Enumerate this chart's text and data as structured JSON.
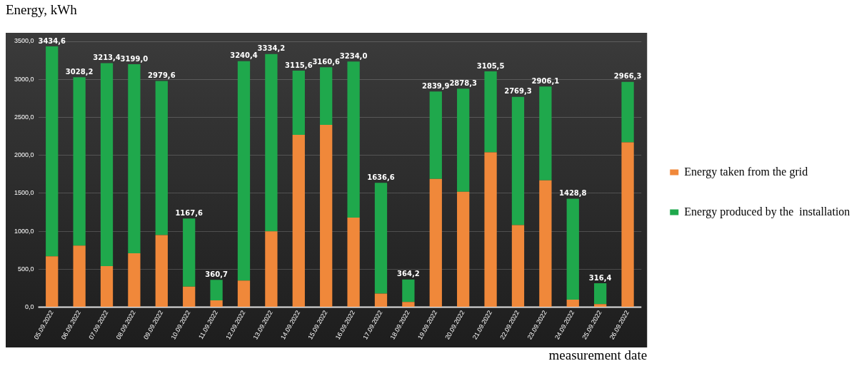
{
  "chart_data": {
    "type": "bar",
    "stacked": true,
    "ylabel": "Energy, kWh",
    "xlabel": "measurement date",
    "categories": [
      "05.09.2022",
      "06.09.2022",
      "07.09.2022",
      "08.09.2022",
      "09.09.2022",
      "10.09.2022",
      "11.09.2022",
      "12.09.2022",
      "13.09.2022",
      "14.09.2022",
      "15.09.2022",
      "16.09.2022",
      "17.09.2022",
      "18.09.2022",
      "19.09.2022",
      "20.09.2022",
      "21.09.2022",
      "22.09.2022",
      "23.09.2022",
      "24.09.2022",
      "25.09.2022",
      "26.09.2022"
    ],
    "series": [
      {
        "name": "Energy taken from the grid",
        "color": "#f0883a",
        "values": [
          670,
          810,
          540,
          710,
          950,
          270,
          90,
          350,
          1000,
          2270,
          2400,
          1180,
          180,
          70,
          1690,
          1520,
          2040,
          1080,
          1670,
          100,
          40,
          2170
        ]
      },
      {
        "name": "Energy produced by the  installation",
        "color": "#1fa84c",
        "values": [
          2764.6,
          2218.2,
          2673.4,
          2489,
          2029.6,
          897.6,
          270.7,
          2890.4,
          2334.2,
          845.6,
          760.6,
          2054,
          1456.6,
          294.2,
          1149.9,
          1358.3,
          1065.5,
          1689.3,
          1236.1,
          1328.8,
          276.4,
          796.3
        ]
      }
    ],
    "totals": [
      "3434,6",
      "3028,2",
      "3213,4",
      "3199,0",
      "2979,6",
      "1167,6",
      "360,7",
      "3240,4",
      "3334,2",
      "3115,6",
      "3160,6",
      "3234,0",
      "1636,6",
      "364,2",
      "2839,9",
      "2878,3",
      "3105,5",
      "2769,3",
      "2906,1",
      "1428,8",
      "316,4",
      "2966,3"
    ],
    "ylim": [
      0,
      3500
    ],
    "yticks": [
      {
        "value": 0,
        "label": "0,0"
      },
      {
        "value": 500,
        "label": "500,0"
      },
      {
        "value": 1000,
        "label": "1000,0"
      },
      {
        "value": 1500,
        "label": "1500,0"
      },
      {
        "value": 2000,
        "label": "2000,0"
      },
      {
        "value": 2500,
        "label": "2500,0"
      },
      {
        "value": 3000,
        "label": "3000,0"
      },
      {
        "value": 3500,
        "label": "3500,0"
      }
    ],
    "grid": "y",
    "legend": "right"
  }
}
